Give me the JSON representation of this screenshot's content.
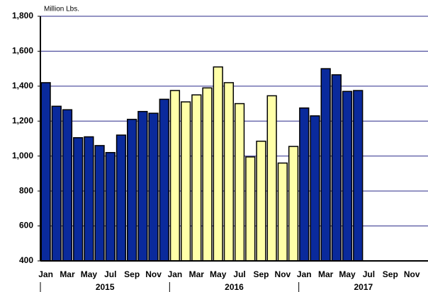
{
  "chart_data": {
    "type": "bar",
    "y_unit_label": "Million Lbs.",
    "ylim": [
      400,
      1800
    ],
    "yticks": [
      {
        "value": 400,
        "label": "400"
      },
      {
        "value": 600,
        "label": "600"
      },
      {
        "value": 800,
        "label": "800"
      },
      {
        "value": 1000,
        "label": "1,000"
      },
      {
        "value": 1200,
        "label": "1,200"
      },
      {
        "value": 1400,
        "label": "1,400"
      },
      {
        "value": 1600,
        "label": "1,600"
      },
      {
        "value": 1800,
        "label": "1,800"
      }
    ],
    "grid": true,
    "groups": [
      {
        "name": "2015",
        "color": "#0a2a9c",
        "categories": [
          "Jan",
          null,
          "Mar",
          null,
          "May",
          null,
          "Jul",
          null,
          "Sep",
          null,
          "Nov",
          null
        ],
        "values": [
          1420,
          1285,
          1265,
          1105,
          1110,
          1060,
          1020,
          1120,
          1210,
          1255,
          1245,
          1325
        ]
      },
      {
        "name": "2016",
        "color": "#ffffa8",
        "categories": [
          "Jan",
          null,
          "Mar",
          null,
          "May",
          null,
          "Jul",
          null,
          "Sep",
          null,
          "Nov",
          null
        ],
        "values": [
          1375,
          1310,
          1350,
          1390,
          1510,
          1420,
          1300,
          995,
          1085,
          1345,
          960,
          1055
        ]
      },
      {
        "name": "2017",
        "color": "#0a2a9c",
        "categories": [
          "Jan",
          null,
          "Mar",
          null,
          "May",
          null,
          "Jul",
          null,
          "Sep",
          null,
          "Nov",
          null
        ],
        "values": [
          1275,
          1230,
          1500,
          1465,
          1370,
          1375,
          null,
          null,
          null,
          null,
          null,
          null
        ]
      }
    ]
  }
}
